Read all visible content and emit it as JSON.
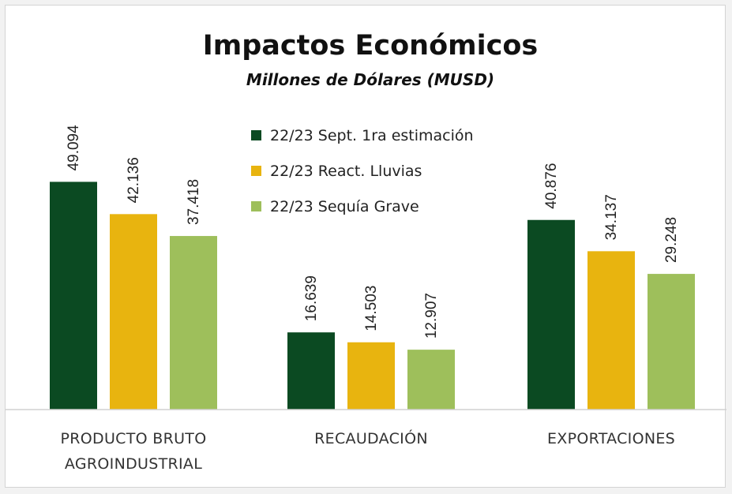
{
  "chart_data": {
    "type": "bar",
    "title": "Impactos Económicos",
    "subtitle": "Millones de Dólares (MUSD)",
    "categories": [
      [
        "PRODUCTO BRUTO",
        "AGROINDUSTRIAL"
      ],
      [
        "RECAUDACIÓN"
      ],
      [
        "EXPORTACIONES"
      ]
    ],
    "series": [
      {
        "name": "22/23 Sept. 1ra estimación",
        "color": "#0b4a22",
        "values": [
          49.094,
          16.639,
          40.876
        ],
        "labels": [
          "49.094",
          "16.639",
          "40.876"
        ]
      },
      {
        "name": "22/23 React. Lluvias",
        "color": "#e8b40f",
        "values": [
          42.136,
          14.503,
          34.137
        ],
        "labels": [
          "42.136",
          "14.503",
          "34.137"
        ]
      },
      {
        "name": "22/23 Sequía Grave",
        "color": "#9ebf5b",
        "values": [
          37.418,
          12.907,
          29.248
        ],
        "labels": [
          "37.418",
          "12.907",
          "29.248"
        ]
      }
    ],
    "ylim": [
      0,
      65
    ],
    "legend_position": "top-center",
    "grid": false,
    "xlabel": "",
    "ylabel": ""
  }
}
